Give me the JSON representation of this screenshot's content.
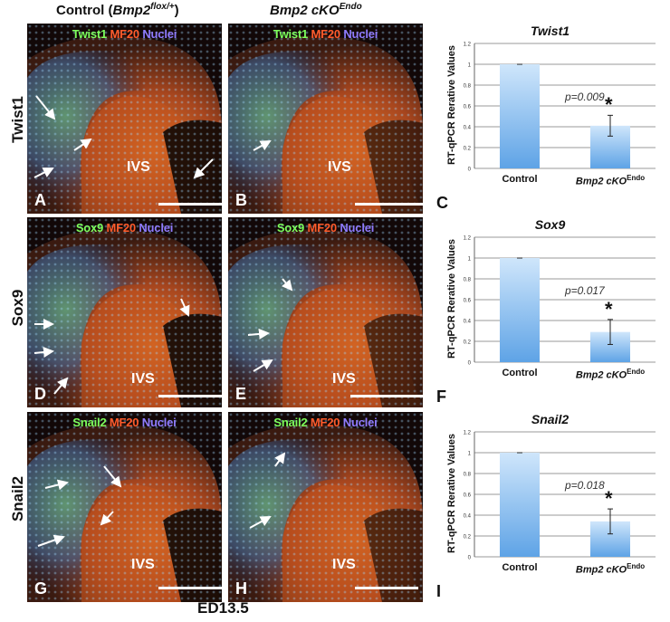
{
  "column_headers": {
    "control": {
      "text": "Control (",
      "gene": "Bmp2",
      "sup": "flox/+",
      "close": ")"
    },
    "cko": {
      "gene": "Bmp2 cKO",
      "sup": "Endo"
    }
  },
  "rows": [
    {
      "label": "Twist1",
      "marker": "Twist1",
      "mf": "MF20",
      "nuclei": "Nuclei",
      "left_letter": "A",
      "right_letter": "B",
      "ivs": "IVS"
    },
    {
      "label": "Sox9",
      "marker": "Sox9",
      "mf": "MF20",
      "nuclei": "Nuclei",
      "left_letter": "D",
      "right_letter": "E",
      "ivs": "IVS"
    },
    {
      "label": "Snail2",
      "marker": "Snail2",
      "mf": "MF20",
      "nuclei": "Nuclei",
      "left_letter": "G",
      "right_letter": "H",
      "ivs": "IVS"
    }
  ],
  "footer": "ED13.5",
  "colors": {
    "bar_top": "#cfe6fb",
    "bar_bottom": "#5ea3e6",
    "green_marker": "#7dff5c",
    "red_marker": "#ff5a2a",
    "blue_marker": "#8f7bff"
  },
  "chart_data": [
    {
      "type": "bar",
      "title": "Twist1",
      "ylabel": "RT-qPCR Rerative Values",
      "categories": [
        "Control",
        "Bmp2 cKO"
      ],
      "category_sup": [
        "",
        "Endo"
      ],
      "values": [
        1.0,
        0.41
      ],
      "errors": [
        0,
        0.1
      ],
      "ylim": [
        0,
        1.2
      ],
      "yticks": [
        "0",
        "0.2",
        "0.4",
        "0.6",
        "0.8",
        "1",
        "1.2"
      ],
      "pvalue": "p=0.009",
      "significance": "*",
      "panel_letter": "C",
      "grid": true
    },
    {
      "type": "bar",
      "title": "Sox9",
      "ylabel": "RT-qPCR Rerative Values",
      "categories": [
        "Control",
        "Bmp2 cKO"
      ],
      "category_sup": [
        "",
        "Endo"
      ],
      "values": [
        1.0,
        0.29
      ],
      "errors": [
        0,
        0.12
      ],
      "ylim": [
        0,
        1.2
      ],
      "yticks": [
        "0",
        "0.2",
        "0.4",
        "0.6",
        "0.8",
        "1",
        "1.2"
      ],
      "pvalue": "p=0.017",
      "significance": "*",
      "panel_letter": "F",
      "grid": true
    },
    {
      "type": "bar",
      "title": "Snail2",
      "ylabel": "RT-qPCR Rerative Values",
      "categories": [
        "Control",
        "Bmp2 cKO"
      ],
      "category_sup": [
        "",
        "Endo"
      ],
      "values": [
        1.0,
        0.34
      ],
      "errors": [
        0,
        0.12
      ],
      "ylim": [
        0,
        1.2
      ],
      "yticks": [
        "0",
        "0.2",
        "0.4",
        "0.6",
        "0.8",
        "1",
        "1.2"
      ],
      "pvalue": "p=0.018",
      "significance": "*",
      "panel_letter": "I",
      "grid": true
    }
  ]
}
